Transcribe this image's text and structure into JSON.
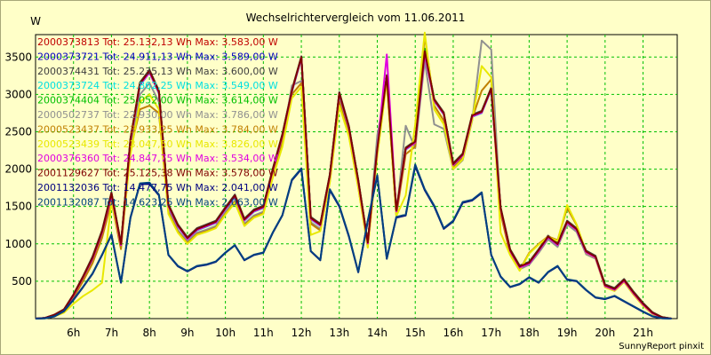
{
  "chart_data": {
    "type": "line",
    "title": "Wechselrichtervergleich vom 11.06.2011",
    "ylabel": "W",
    "footer": "SunnyReport pinxit",
    "ylim": [
      0,
      3800
    ],
    "xlim": [
      5,
      21.9
    ],
    "x_ticks": [
      6,
      7,
      8,
      9,
      10,
      11,
      12,
      13,
      14,
      15,
      16,
      17,
      18,
      19,
      20,
      21
    ],
    "x_tick_labels": [
      "6h",
      "7h",
      "8h",
      "9h",
      "10h",
      "11h",
      "12h",
      "13h",
      "14h",
      "15h",
      "16h",
      "17h",
      "18h",
      "19h",
      "20h",
      "21h"
    ],
    "y_ticks": [
      500,
      1000,
      1500,
      2000,
      2500,
      3000,
      3500
    ],
    "y_tick_labels": [
      "500",
      "1000",
      "1500",
      "2000",
      "2500",
      "3000",
      "3500"
    ],
    "grid": true,
    "grid_color": "#00c000",
    "x": [
      5.0,
      5.25,
      5.5,
      5.75,
      6.0,
      6.25,
      6.5,
      6.75,
      7.0,
      7.25,
      7.5,
      7.75,
      8.0,
      8.25,
      8.5,
      8.75,
      9.0,
      9.25,
      9.5,
      9.75,
      10.0,
      10.25,
      10.5,
      10.75,
      11.0,
      11.25,
      11.5,
      11.75,
      12.0,
      12.25,
      12.5,
      12.75,
      13.0,
      13.25,
      13.5,
      13.75,
      14.0,
      14.25,
      14.5,
      14.75,
      15.0,
      15.25,
      15.5,
      15.75,
      16.0,
      16.25,
      16.5,
      16.75,
      17.0,
      17.25,
      17.5,
      17.75,
      18.0,
      18.25,
      18.5,
      18.75,
      19.0,
      19.25,
      19.5,
      19.75,
      20.0,
      20.25,
      20.5,
      20.75,
      21.0,
      21.25,
      21.5,
      21.75
    ],
    "series": [
      {
        "name": "2000373813 Tot: 25.132,13 Wh Max: 3.583,00 W",
        "color": "#c00000",
        "values": [
          0,
          10,
          50,
          120,
          320,
          560,
          820,
          1170,
          1680,
          1000,
          2400,
          3150,
          3320,
          3040,
          1520,
          1250,
          1080,
          1200,
          1250,
          1300,
          1480,
          1650,
          1330,
          1450,
          1500,
          2000,
          2460,
          3050,
          3500,
          1350,
          1260,
          1920,
          3020,
          2570,
          1850,
          1020,
          2280,
          3250,
          1450,
          2280,
          2370,
          3580,
          2930,
          2750,
          2070,
          2200,
          2720,
          2770,
          3080,
          1480,
          920,
          700,
          750,
          920,
          1100,
          1000,
          1300,
          1200,
          900,
          830,
          450,
          400,
          520,
          350,
          200,
          80,
          20,
          0
        ]
      },
      {
        "name": "2000373721 Tot: 24.911,13 Wh Max: 3.589,00 W",
        "color": "#0000c0",
        "values": [
          0,
          10,
          50,
          120,
          310,
          550,
          800,
          1150,
          1650,
          990,
          2380,
          3130,
          3300,
          3020,
          1510,
          1240,
          1070,
          1190,
          1240,
          1290,
          1470,
          1640,
          1320,
          1440,
          1490,
          1990,
          2450,
          3040,
          3490,
          1340,
          1250,
          1910,
          3010,
          2560,
          1840,
          1010,
          2270,
          3240,
          1440,
          2270,
          2360,
          3570,
          2920,
          2740,
          2060,
          2190,
          2710,
          2760,
          3070,
          1470,
          910,
          690,
          740,
          910,
          1090,
          990,
          1290,
          1190,
          890,
          820,
          440,
          390,
          510,
          340,
          190,
          70,
          15,
          0
        ]
      },
      {
        "name": "2000374431 Tot: 25.235,13 Wh Max: 3.600,00 W",
        "color": "#404040",
        "values": [
          0,
          10,
          55,
          125,
          325,
          565,
          830,
          1180,
          1690,
          1010,
          2410,
          3160,
          3330,
          3050,
          1530,
          1260,
          1090,
          1210,
          1260,
          1310,
          1490,
          1660,
          1340,
          1460,
          1510,
          2010,
          2470,
          3060,
          3510,
          1360,
          1270,
          1930,
          3030,
          2580,
          1860,
          1030,
          2290,
          3260,
          1460,
          2290,
          2380,
          3600,
          2940,
          2760,
          2080,
          2210,
          2730,
          2780,
          3090,
          1490,
          930,
          710,
          760,
          930,
          1110,
          1010,
          1310,
          1210,
          910,
          840,
          460,
          410,
          530,
          360,
          210,
          85,
          20,
          0
        ]
      },
      {
        "name": "2000373724 Tot: 24.862,25 Wh Max: 3.549,00 W",
        "color": "#00e0e0",
        "values": [
          0,
          5,
          30,
          100,
          300,
          540,
          790,
          1140,
          1640,
          980,
          2370,
          3120,
          3290,
          3010,
          1500,
          1230,
          1060,
          1180,
          1230,
          1280,
          1460,
          1630,
          1310,
          1430,
          1480,
          1980,
          2440,
          3030,
          3480,
          1330,
          1240,
          1900,
          3000,
          2550,
          1830,
          1000,
          2260,
          3230,
          1430,
          2260,
          2350,
          3549,
          2910,
          2730,
          2050,
          2180,
          2700,
          2750,
          3060,
          1460,
          900,
          680,
          730,
          900,
          1080,
          980,
          1280,
          1180,
          880,
          810,
          430,
          380,
          500,
          330,
          180,
          70,
          15,
          0
        ]
      },
      {
        "name": "2000374404 Tot: 25.052,00 Wh Max: 3.614,00 W",
        "color": "#00c000",
        "values": [
          0,
          10,
          50,
          120,
          315,
          555,
          810,
          1160,
          1670,
          995,
          2390,
          3140,
          3310,
          3030,
          1515,
          1245,
          1075,
          1195,
          1245,
          1295,
          1475,
          1645,
          1325,
          1445,
          1495,
          1995,
          2455,
          3045,
          3495,
          1345,
          1255,
          1915,
          3015,
          2565,
          1845,
          1015,
          2275,
          3245,
          1445,
          2275,
          2365,
          3614,
          2925,
          2745,
          2065,
          2195,
          2715,
          2765,
          3075,
          1475,
          915,
          695,
          745,
          915,
          1095,
          995,
          1295,
          1195,
          895,
          825,
          445,
          395,
          515,
          345,
          195,
          75,
          18,
          0
        ]
      },
      {
        "name": "2000502737 Tot: 22.930,00 Wh Max: 3.786,00 W",
        "color": "#909090",
        "values": [
          0,
          8,
          45,
          110,
          290,
          520,
          760,
          1100,
          1580,
          950,
          2300,
          3000,
          3150,
          2900,
          1450,
          1180,
          1030,
          1150,
          1190,
          1240,
          1420,
          1580,
          1270,
          1380,
          1430,
          1920,
          2370,
          3120,
          3180,
          1290,
          1200,
          1850,
          2920,
          2480,
          1780,
          980,
          2450,
          3150,
          1390,
          2580,
          2280,
          3450,
          2600,
          2540,
          2000,
          2120,
          2650,
          3720,
          3600,
          1420,
          870,
          660,
          720,
          880,
          1060,
          960,
          1260,
          1160,
          860,
          800,
          420,
          370,
          490,
          320,
          180,
          65,
          12,
          0
        ]
      },
      {
        "name": "2000523437 Tot: 23.933,25 Wh Max: 3.784,00 W",
        "color": "#c08000",
        "values": [
          0,
          8,
          40,
          105,
          280,
          500,
          740,
          1080,
          1560,
          930,
          2260,
          2800,
          2850,
          2750,
          1420,
          1160,
          1010,
          1130,
          1170,
          1220,
          1400,
          1560,
          1250,
          1360,
          1410,
          1900,
          2350,
          3000,
          3150,
          1270,
          1180,
          1830,
          2900,
          2460,
          1760,
          960,
          2200,
          3200,
          1380,
          2200,
          2300,
          3784,
          2850,
          2650,
          2020,
          2150,
          2680,
          3050,
          3200,
          1410,
          860,
          650,
          880,
          1000,
          1100,
          1050,
          1480,
          1250,
          890,
          820,
          430,
          380,
          500,
          330,
          180,
          65,
          12,
          0
        ]
      },
      {
        "name": "2000523439 Tot: 23.047,50 Wh Max: 3.826,00 W",
        "color": "#e8e800",
        "values": [
          0,
          5,
          30,
          80,
          200,
          300,
          380,
          480,
          1550,
          1000,
          2200,
          2900,
          3000,
          2800,
          1400,
          1150,
          1000,
          1120,
          1160,
          1210,
          1390,
          1550,
          1240,
          1350,
          1400,
          1890,
          2300,
          2950,
          3100,
          1120,
          1170,
          1820,
          2850,
          2440,
          1750,
          950,
          2180,
          3180,
          1370,
          1650,
          2600,
          3826,
          2800,
          2600,
          2000,
          2130,
          2660,
          3380,
          3230,
          1150,
          850,
          640,
          870,
          990,
          1090,
          1040,
          1520,
          1260,
          880,
          810,
          420,
          370,
          490,
          320,
          170,
          60,
          10,
          0
        ]
      },
      {
        "name": "2000376360 Tot: 24.847,75 Wh Max: 3.534,00 W",
        "color": "#e000e0",
        "values": [
          0,
          10,
          50,
          120,
          310,
          550,
          800,
          1150,
          1650,
          985,
          2380,
          3130,
          3290,
          3020,
          1505,
          1235,
          1065,
          1185,
          1235,
          1285,
          1465,
          1635,
          1315,
          1435,
          1485,
          1985,
          2445,
          3035,
          3485,
          1335,
          1245,
          1905,
          3005,
          2555,
          1835,
          1005,
          2265,
          3534,
          1435,
          2265,
          2355,
          3534,
          2915,
          2735,
          2055,
          2185,
          2705,
          2755,
          3065,
          1465,
          905,
          685,
          735,
          905,
          1085,
          985,
          1285,
          1185,
          885,
          815,
          435,
          385,
          505,
          335,
          185,
          70,
          15,
          0
        ]
      },
      {
        "name": "2001129627 Tot: 25.125,38 Wh Max: 3.578,00 W",
        "color": "#800000",
        "values": [
          0,
          10,
          52,
          122,
          318,
          558,
          815,
          1165,
          1675,
          998,
          2395,
          3145,
          3315,
          3035,
          1518,
          1248,
          1078,
          1198,
          1248,
          1298,
          1478,
          1648,
          1328,
          1448,
          1498,
          1998,
          2458,
          3048,
          3498,
          1348,
          1258,
          1918,
          3018,
          2568,
          1848,
          1018,
          2278,
          3248,
          1448,
          2278,
          2368,
          3578,
          2928,
          2748,
          2068,
          2198,
          2718,
          2768,
          3078,
          1478,
          918,
          698,
          748,
          918,
          1098,
          998,
          1298,
          1198,
          898,
          828,
          448,
          398,
          518,
          348,
          198,
          78,
          18,
          0
        ]
      },
      {
        "name": "2001132036 Tot: 14.477,75 Wh Max: 2.041,00 W",
        "color": "#000080",
        "values": [
          0,
          5,
          30,
          100,
          250,
          420,
          600,
          850,
          1120,
          480,
          1350,
          1800,
          1800,
          1650,
          850,
          700,
          630,
          700,
          720,
          760,
          880,
          980,
          780,
          850,
          880,
          1150,
          1380,
          1850,
          2000,
          900,
          780,
          1720,
          1500,
          1100,
          620,
          1300,
          1910,
          800,
          1350,
          1380,
          2041,
          1720,
          1500,
          1200,
          1300,
          1550,
          1580,
          1680,
          850,
          560,
          420,
          460,
          550,
          480,
          620,
          700,
          520,
          500,
          380,
          280,
          260,
          300,
          230,
          160,
          90,
          30,
          5,
          0
        ]
      },
      {
        "name": "2001132087 Tot: 14.623,25 Wh Max: 2.063,00 W",
        "color": "#004080",
        "values": [
          0,
          5,
          32,
          105,
          255,
          425,
          605,
          855,
          1125,
          485,
          1355,
          1810,
          1820,
          1660,
          855,
          705,
          635,
          705,
          725,
          765,
          885,
          985,
          785,
          855,
          885,
          1155,
          1385,
          1860,
          2010,
          905,
          785,
          1730,
          1510,
          1110,
          625,
          1310,
          1920,
          805,
          1360,
          1390,
          2063,
          1730,
          1510,
          1210,
          1310,
          1560,
          1590,
          1690,
          855,
          565,
          425,
          465,
          555,
          485,
          625,
          705,
          525,
          505,
          385,
          285,
          265,
          305,
          235,
          165,
          95,
          32,
          5,
          0
        ]
      }
    ]
  }
}
